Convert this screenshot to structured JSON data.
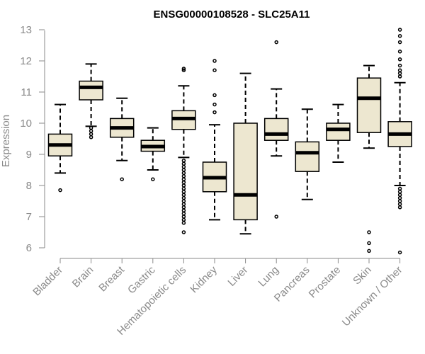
{
  "chart_data": {
    "type": "boxplot",
    "title": "ENSG00000108528 - SLC25A11",
    "xlabel": "",
    "ylabel": "Expression",
    "ylim": [
      5.7,
      13.1
    ],
    "yticks": [
      6,
      7,
      8,
      9,
      10,
      11,
      12,
      13
    ],
    "grid": false,
    "box_color": "#ede7d0",
    "categories": [
      "Bladder",
      "Brain",
      "Breast",
      "Gastric",
      "Hematopoietic cells",
      "Kidney",
      "Liver",
      "Lung",
      "Pancreas",
      "Prostate",
      "Skin",
      "Unknown / Other"
    ],
    "boxes": [
      {
        "whisker_low": 8.4,
        "q1": 8.95,
        "median": 9.3,
        "q3": 9.65,
        "whisker_high": 10.6,
        "outliers": [
          7.85
        ]
      },
      {
        "whisker_low": 9.9,
        "q1": 10.75,
        "median": 11.15,
        "q3": 11.35,
        "whisker_high": 11.9,
        "outliers": [
          9.55,
          9.65,
          9.75,
          9.85
        ]
      },
      {
        "whisker_low": 8.8,
        "q1": 9.55,
        "median": 9.85,
        "q3": 10.15,
        "whisker_high": 10.8,
        "outliers": [
          8.2
        ]
      },
      {
        "whisker_low": 8.5,
        "q1": 9.1,
        "median": 9.25,
        "q3": 9.45,
        "whisker_high": 9.85,
        "outliers": [
          8.2
        ]
      },
      {
        "whisker_low": 8.9,
        "q1": 9.8,
        "median": 10.15,
        "q3": 10.4,
        "whisker_high": 11.2,
        "outliers": [
          11.7,
          11.75,
          8.8,
          8.7,
          8.6,
          8.5,
          8.4,
          8.3,
          8.2,
          8.1,
          8.0,
          7.9,
          7.8,
          7.7,
          7.6,
          7.5,
          7.4,
          7.3,
          7.2,
          7.1,
          7.0,
          6.9,
          6.8,
          6.5
        ]
      },
      {
        "whisker_low": 6.9,
        "q1": 7.8,
        "median": 8.25,
        "q3": 8.75,
        "whisker_high": 9.95,
        "outliers": [
          10.35,
          10.6,
          10.9,
          11.7,
          12.0
        ]
      },
      {
        "whisker_low": 6.45,
        "q1": 6.9,
        "median": 7.7,
        "q3": 10.0,
        "whisker_high": 11.6,
        "outliers": []
      },
      {
        "whisker_low": 8.95,
        "q1": 9.45,
        "median": 9.65,
        "q3": 10.15,
        "whisker_high": 11.1,
        "outliers": [
          7.0,
          12.6
        ]
      },
      {
        "whisker_low": 7.55,
        "q1": 8.45,
        "median": 9.05,
        "q3": 9.4,
        "whisker_high": 10.45,
        "outliers": []
      },
      {
        "whisker_low": 8.75,
        "q1": 9.45,
        "median": 9.8,
        "q3": 10.0,
        "whisker_high": 10.6,
        "outliers": []
      },
      {
        "whisker_low": 9.2,
        "q1": 9.7,
        "median": 10.8,
        "q3": 11.45,
        "whisker_high": 11.85,
        "outliers": [
          5.9,
          6.15,
          6.5
        ]
      },
      {
        "whisker_low": 8.0,
        "q1": 9.25,
        "median": 9.65,
        "q3": 10.05,
        "whisker_high": 11.3,
        "outliers": [
          5.85,
          7.3,
          7.4,
          7.5,
          7.6,
          7.7,
          7.8,
          7.9,
          11.5,
          11.6,
          11.7,
          11.85,
          12.05,
          12.3,
          12.6,
          12.8,
          13.0
        ]
      }
    ]
  }
}
